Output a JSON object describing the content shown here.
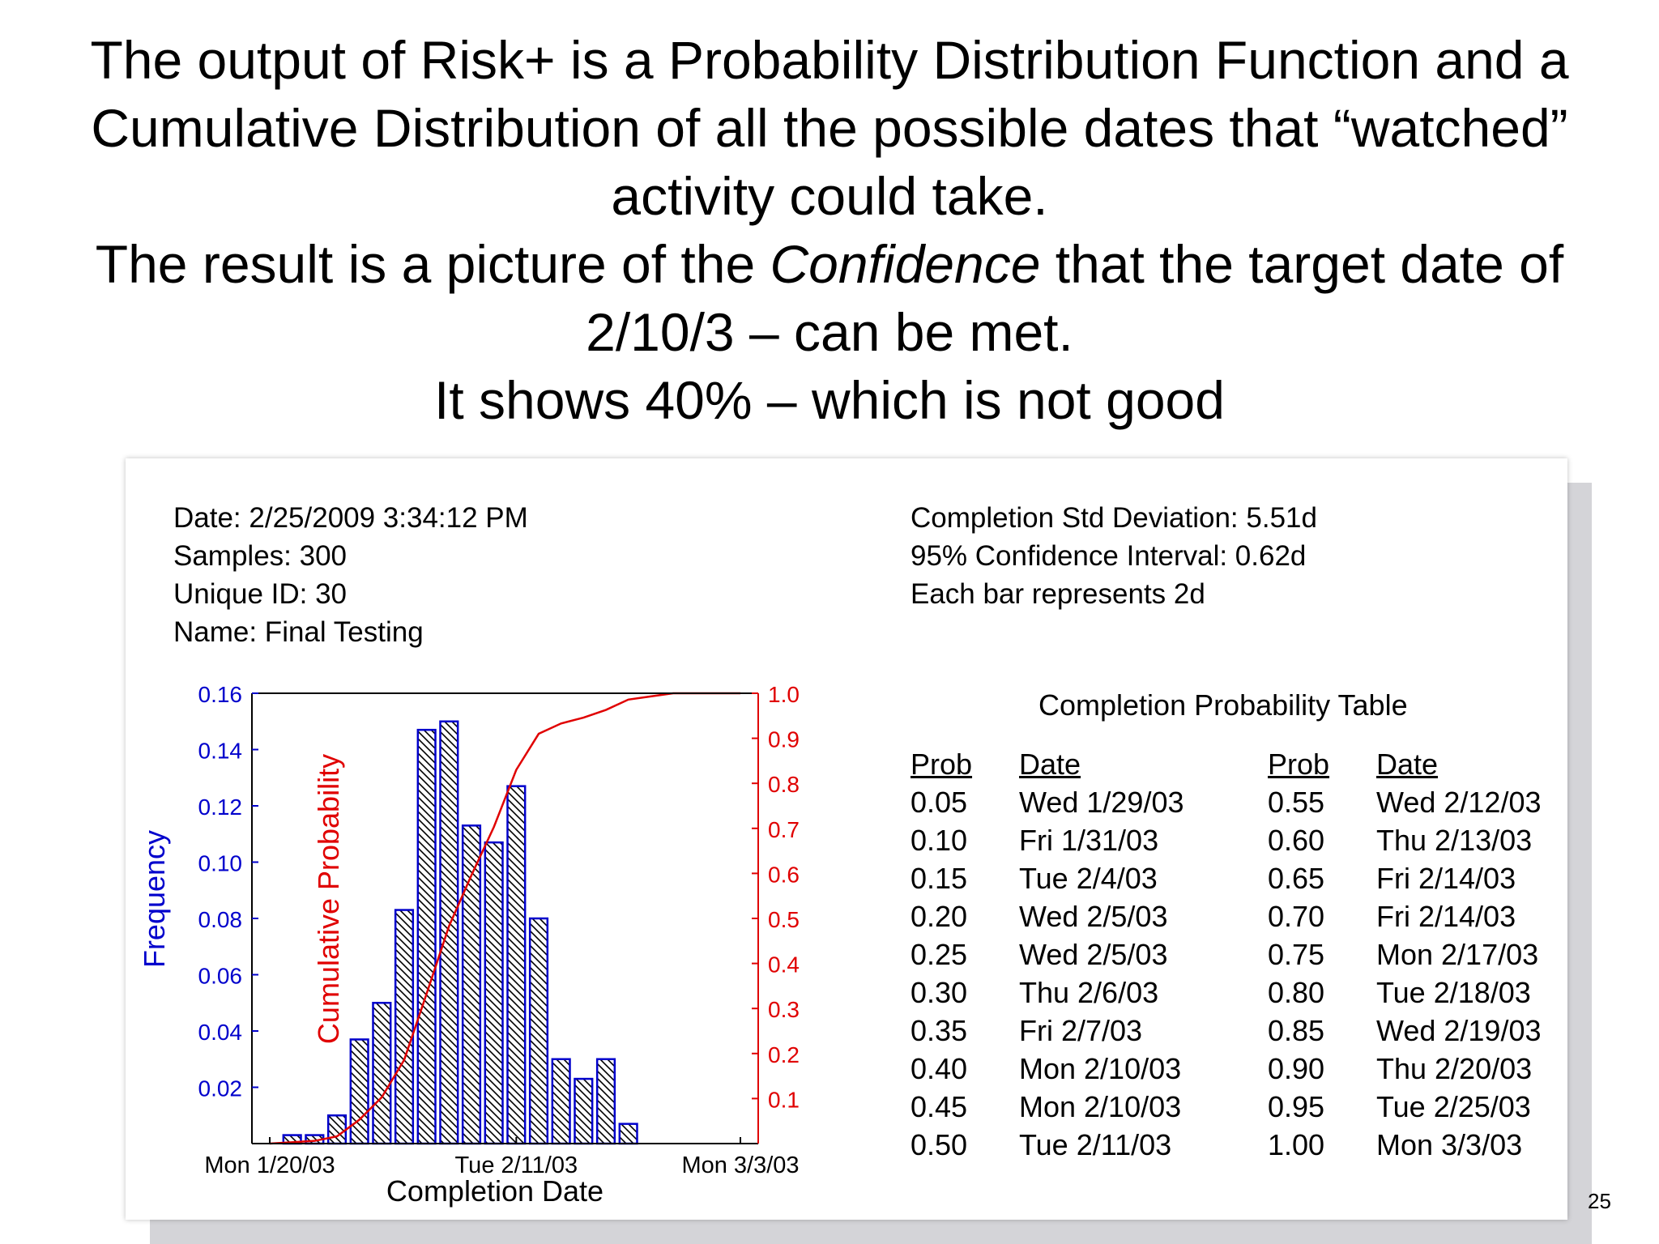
{
  "slide": {
    "heading_lines": [
      "The output of Risk+ is a Probability Distribution Function and a",
      "Cumulative Distribution of all the possible dates that “watched”",
      "activity could take."
    ],
    "heading_l4_pre": "The result is a picture of the ",
    "heading_l4_em": "Confidence",
    "heading_l4_post": " that the target date of",
    "heading_l5": "2/10/3 – can be met.",
    "heading_l6": "It shows 40% – which is not good",
    "page_number": "25"
  },
  "report": {
    "left_info": [
      "Date: 2/25/2009 3:34:12 PM",
      "Samples: 300",
      "Unique ID: 30",
      "Name: Final Testing"
    ],
    "right_info": [
      "Completion Std Deviation: 5.51d",
      "95% Confidence Interval: 0.62d",
      "Each bar represents 2d"
    ]
  },
  "table": {
    "title": "Completion Probability Table",
    "headers": [
      "Prob",
      "Date",
      "Prob",
      "Date"
    ],
    "rows": [
      [
        "0.05",
        "Wed 1/29/03",
        "0.55",
        "Wed 2/12/03"
      ],
      [
        "0.10",
        "Fri 1/31/03",
        "0.60",
        "Thu 2/13/03"
      ],
      [
        "0.15",
        "Tue 2/4/03",
        "0.65",
        "Fri 2/14/03"
      ],
      [
        "0.20",
        "Wed 2/5/03",
        "0.70",
        "Fri 2/14/03"
      ],
      [
        "0.25",
        "Wed 2/5/03",
        "0.75",
        "Mon 2/17/03"
      ],
      [
        "0.30",
        "Thu 2/6/03",
        "0.80",
        "Tue 2/18/03"
      ],
      [
        "0.35",
        "Fri 2/7/03",
        "0.85",
        "Wed 2/19/03"
      ],
      [
        "0.40",
        "Mon 2/10/03",
        "0.90",
        "Thu 2/20/03"
      ],
      [
        "0.45",
        "Mon 2/10/03",
        "0.95",
        "Tue 2/25/03"
      ],
      [
        "0.50",
        "Tue 2/11/03",
        "1.00",
        "Mon 3/3/03"
      ]
    ]
  },
  "chart_data": {
    "type": "bar",
    "xlabel": "Completion Date",
    "ylabel_left": "Frequency",
    "ylabel_right": "Cumulative Probability",
    "x_ticks": [
      "Mon 1/20/03",
      "Tue 2/11/03",
      "Mon 3/3/03"
    ],
    "y_left_ticks": [
      "0.02",
      "0.04",
      "0.06",
      "0.08",
      "0.10",
      "0.12",
      "0.14",
      "0.16"
    ],
    "y_right_ticks": [
      "0.1",
      "0.2",
      "0.3",
      "0.4",
      "0.5",
      "0.6",
      "0.7",
      "0.8",
      "0.9",
      "1.0"
    ],
    "ylim_left": [
      0,
      0.16
    ],
    "ylim_right": [
      0,
      1.0
    ],
    "bar_width_days": 2,
    "series": [
      {
        "name": "Frequency",
        "type": "bar",
        "color": "#0000cc",
        "x": [
          "1/22/03",
          "1/24/03",
          "1/26/03",
          "1/28/03",
          "1/30/03",
          "2/1/03",
          "2/3/03",
          "2/5/03",
          "2/7/03",
          "2/9/03",
          "2/11/03",
          "2/13/03",
          "2/15/03",
          "2/17/03",
          "2/19/03",
          "2/21/03",
          "2/23/03",
          "2/25/03"
        ],
        "values": [
          0.003,
          0.003,
          0.01,
          0.037,
          0.05,
          0.083,
          0.147,
          0.15,
          0.113,
          0.107,
          0.127,
          0.08,
          0.03,
          0.023,
          0.03,
          0.007,
          0,
          0
        ]
      },
      {
        "name": "Cumulative Probability",
        "type": "line",
        "color": "#e00000",
        "x": [
          "1/20/03",
          "1/22/03",
          "1/24/03",
          "1/26/03",
          "1/28/03",
          "1/30/03",
          "2/1/03",
          "2/3/03",
          "2/5/03",
          "2/7/03",
          "2/9/03",
          "2/11/03",
          "2/13/03",
          "2/15/03",
          "2/17/03",
          "2/19/03",
          "2/21/03",
          "2/23/03",
          "2/25/03",
          "2/27/03",
          "3/1/03",
          "3/3/03"
        ],
        "values": [
          0.0,
          0.003,
          0.006,
          0.016,
          0.053,
          0.103,
          0.186,
          0.333,
          0.483,
          0.596,
          0.703,
          0.83,
          0.91,
          0.933,
          0.946,
          0.963,
          0.986,
          0.993,
          1.0,
          1.0,
          1.0,
          1.0
        ]
      }
    ],
    "grid": false,
    "legend": "none"
  }
}
